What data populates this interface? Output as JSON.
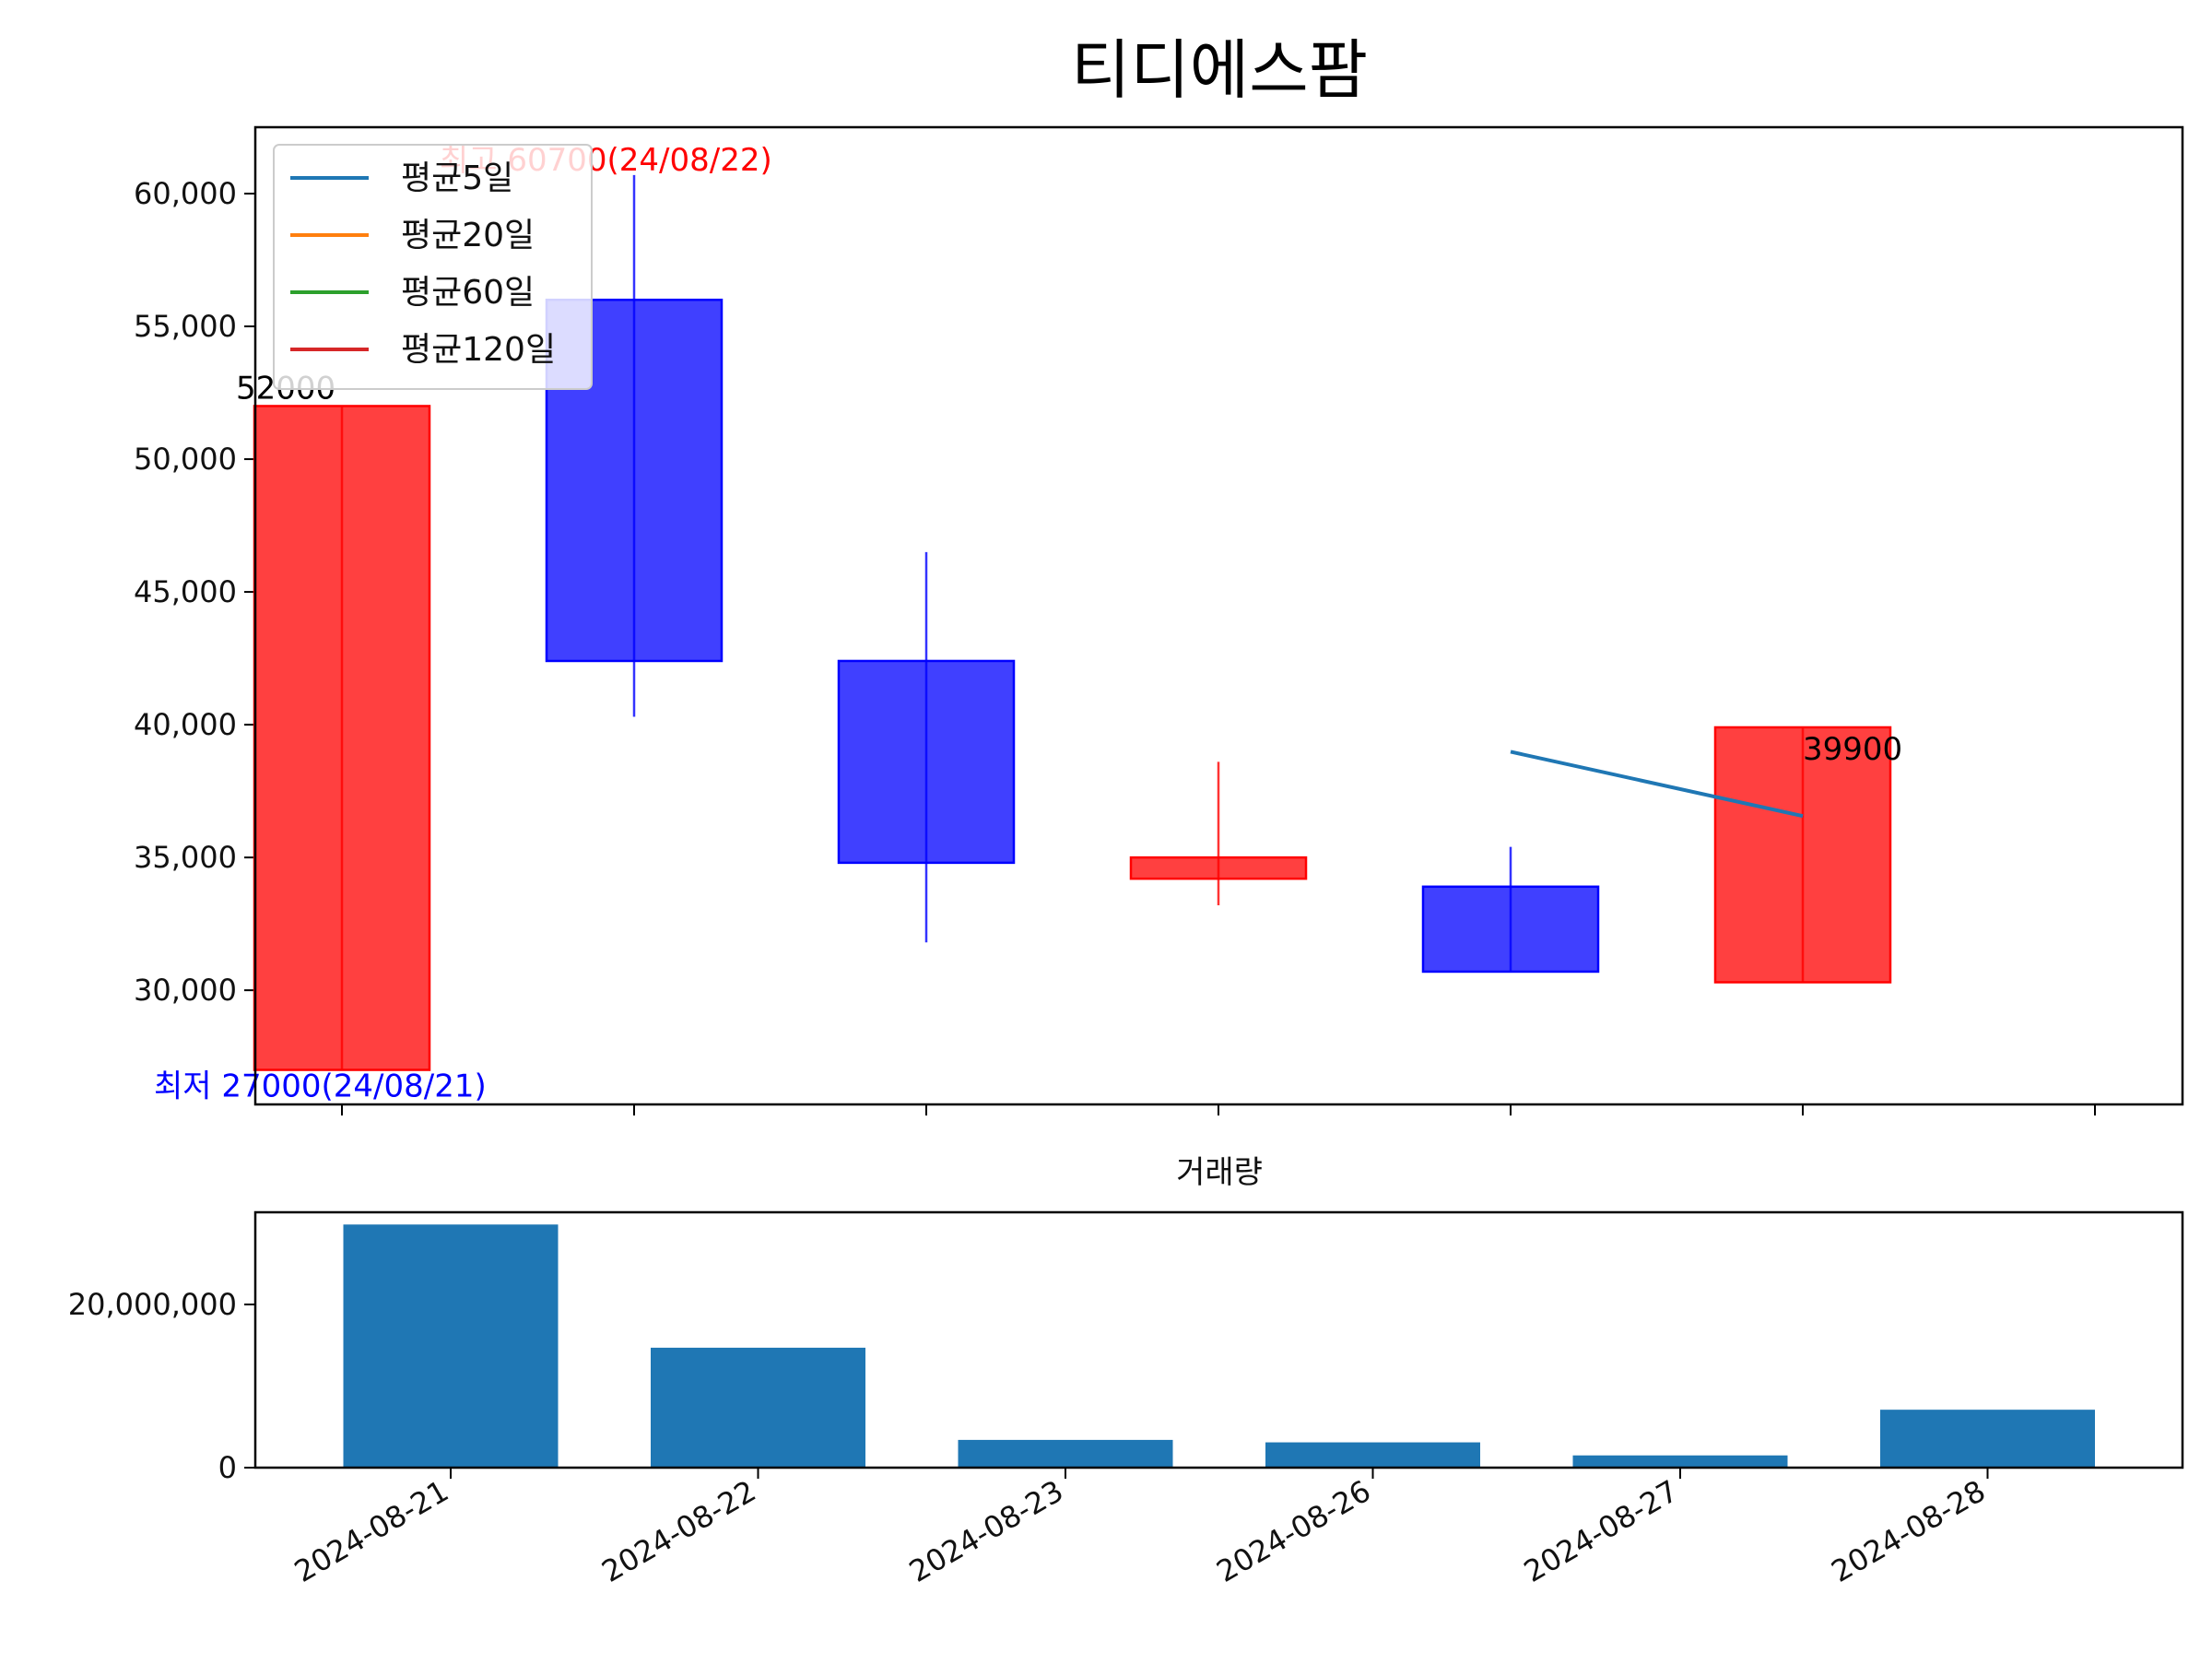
{
  "chart_data": [
    {
      "type": "candlestick",
      "title": "티디에스팜",
      "categories": [
        "2024-08-21",
        "2024-08-22",
        "2024-08-23",
        "2024-08-26",
        "2024-08-27",
        "2024-08-28"
      ],
      "ohlc": [
        {
          "open": 27000,
          "high": 52000,
          "low": 27000,
          "close": 52000
        },
        {
          "open": 56000,
          "high": 60700,
          "low": 40300,
          "close": 42400
        },
        {
          "open": 42400,
          "high": 46500,
          "low": 31800,
          "close": 34800
        },
        {
          "open": 34200,
          "high": 38600,
          "low": 33200,
          "close": 35000
        },
        {
          "open": 33900,
          "high": 35400,
          "low": 30700,
          "close": 30700
        },
        {
          "open": 30300,
          "high": 39900,
          "low": 30300,
          "close": 39900
        }
      ],
      "ylim": [
        25700,
        62500
      ],
      "yticks": [
        30000,
        35000,
        40000,
        45000,
        50000,
        55000,
        60000
      ],
      "ytick_labels": [
        "30,000",
        "35,000",
        "40,000",
        "45,000",
        "50,000",
        "55,000",
        "60,000"
      ],
      "series": [
        {
          "name": "평균5일",
          "color": "#1f77b4",
          "values": [
            null,
            null,
            null,
            null,
            38980,
            36560
          ]
        },
        {
          "name": "평균20일",
          "color": "#ff7f0e",
          "values": [
            null,
            null,
            null,
            null,
            null,
            null
          ]
        },
        {
          "name": "평균60일",
          "color": "#2ca02c",
          "values": [
            null,
            null,
            null,
            null,
            null,
            null
          ]
        },
        {
          "name": "평균120일",
          "color": "#d62728",
          "values": [
            null,
            null,
            null,
            null,
            null,
            null
          ]
        }
      ],
      "legend": "upper-left",
      "up_color": "#ff0000",
      "down_color": "#0000ff",
      "annotations": [
        {
          "text": "52000",
          "x": "2024-08-21",
          "y": 52000,
          "color": "#000000"
        },
        {
          "text": "최고 60700(24/08/22)",
          "x": "2024-08-22",
          "y": 60700,
          "color": "#ff0000"
        },
        {
          "text": "최저 27000(24/08/21)",
          "x": "2024-08-21",
          "y": 27000,
          "color": "#0000ff"
        },
        {
          "text": "39900",
          "x": "2024-08-28",
          "y": 39900,
          "color": "#000000"
        }
      ]
    },
    {
      "type": "bar",
      "title": "거래량",
      "categories": [
        "2024-08-21",
        "2024-08-22",
        "2024-08-23",
        "2024-08-26",
        "2024-08-27",
        "2024-08-28"
      ],
      "values": [
        29800000,
        14700000,
        3400000,
        3100000,
        1500000,
        7100000
      ],
      "color": "#1f77b4",
      "ylim": [
        0,
        31300000
      ],
      "yticks": [
        0,
        20000000
      ],
      "ytick_labels": [
        "0",
        "20,000,000"
      ],
      "xtick_labels": [
        "2024-08-21",
        "2024-08-22",
        "2024-08-23",
        "2024-08-26",
        "2024-08-27",
        "2024-08-28"
      ]
    }
  ]
}
